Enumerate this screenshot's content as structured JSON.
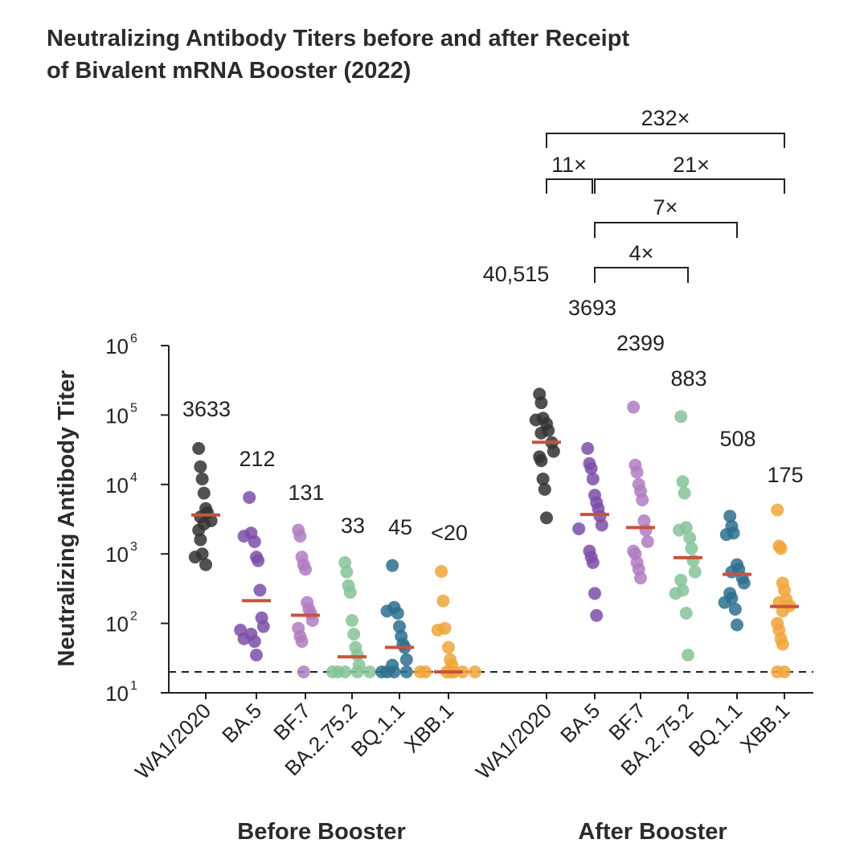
{
  "chart_data": {
    "type": "scatter",
    "title_line1": "Neutralizing Antibody Titers before and after Receipt",
    "title_line2": "of Bivalent mRNA Booster (2022)",
    "ylabel": "Neutralizing Antibody Titer",
    "yscale": "log10",
    "ylim": [
      10,
      1000000
    ],
    "yticks": [
      {
        "value": 10,
        "base": "10",
        "exp": "1"
      },
      {
        "value": 100,
        "base": "10",
        "exp": "2"
      },
      {
        "value": 1000,
        "base": "10",
        "exp": "3"
      },
      {
        "value": 10000,
        "base": "10",
        "exp": "4"
      },
      {
        "value": 100000,
        "base": "10",
        "exp": "5"
      },
      {
        "value": 1000000,
        "base": "10",
        "exp": "6"
      }
    ],
    "detection_limit": 20,
    "groups": [
      {
        "name": "Before Booster",
        "series": [
          {
            "name": "WA1/2020",
            "label": "3633",
            "median": 3633,
            "color": "#333333",
            "values": [
              33000,
              18000,
              12000,
              7500,
              4500,
              3900,
              3400,
              3000,
              2700,
              2200,
              1600,
              1000,
              900,
              700
            ]
          },
          {
            "name": "BA.5",
            "label": "212",
            "median": 212,
            "color": "#7d4fa8",
            "values": [
              6500,
              2000,
              1800,
              1500,
              900,
              800,
              300,
              120,
              90,
              80,
              70,
              60,
              55,
              35
            ]
          },
          {
            "name": "BF.7",
            "label": "131",
            "median": 131,
            "color": "#b07cc2",
            "values": [
              2200,
              1800,
              900,
              700,
              600,
              200,
              160,
              140,
              110,
              85,
              65,
              55,
              20
            ]
          },
          {
            "name": "BA.2.75.2",
            "label": "33",
            "median": 33,
            "color": "#86c39a",
            "values": [
              750,
              550,
              350,
              280,
              110,
              70,
              45,
              35,
              25,
              20,
              20,
              20,
              20,
              20
            ]
          },
          {
            "name": "BQ.1.1",
            "label": "45",
            "median": 45,
            "color": "#2e6e8e",
            "values": [
              680,
              170,
              150,
              140,
              90,
              65,
              50,
              45,
              30,
              25,
              20,
              20,
              20,
              20
            ]
          },
          {
            "name": "XBB.1",
            "label": "<20",
            "median": 20,
            "color": "#f0a53a",
            "values": [
              560,
              210,
              85,
              80,
              45,
              30,
              25,
              20,
              20,
              20,
              20,
              20,
              20,
              20
            ]
          }
        ]
      },
      {
        "name": "After Booster",
        "series": [
          {
            "name": "WA1/2020",
            "label": "40,515",
            "median": 40515,
            "color": "#333333",
            "values": [
              200000,
              150000,
              90000,
              85000,
              75000,
              60000,
              55000,
              40000,
              30000,
              25000,
              22000,
              12000,
              8500,
              3300
            ]
          },
          {
            "name": "BA.5",
            "label": "3693",
            "median": 3693,
            "color": "#7d4fa8",
            "values": [
              33000,
              20000,
              17000,
              12000,
              7000,
              5500,
              4500,
              3500,
              2600,
              2300,
              1100,
              900,
              750,
              270,
              130
            ]
          },
          {
            "name": "BF.7",
            "label": "2399",
            "median": 2399,
            "color": "#b07cc2",
            "values": [
              130000,
              19000,
              15000,
              10000,
              8000,
              6000,
              3000,
              2200,
              1500,
              1100,
              1000,
              750,
              600,
              450
            ]
          },
          {
            "name": "BA.2.75.2",
            "label": "883",
            "median": 883,
            "color": "#86c39a",
            "values": [
              95000,
              11000,
              7500,
              2400,
              2200,
              1700,
              1200,
              800,
              550,
              420,
              300,
              270,
              140,
              35
            ]
          },
          {
            "name": "BQ.1.1",
            "label": "508",
            "median": 508,
            "color": "#2e6e8e",
            "values": [
              3500,
              2500,
              2000,
              1900,
              700,
              600,
              550,
              450,
              380,
              270,
              230,
              200,
              160,
              95
            ]
          },
          {
            "name": "XBB.1",
            "label": "175",
            "median": 175,
            "color": "#f0a53a",
            "values": [
              4300,
              1300,
              1200,
              380,
              300,
              220,
              200,
              180,
              150,
              100,
              80,
              60,
              50,
              20,
              20
            ]
          }
        ]
      }
    ],
    "fold_changes": [
      "232×",
      "11×",
      "21×",
      "7×",
      "4×"
    ]
  }
}
